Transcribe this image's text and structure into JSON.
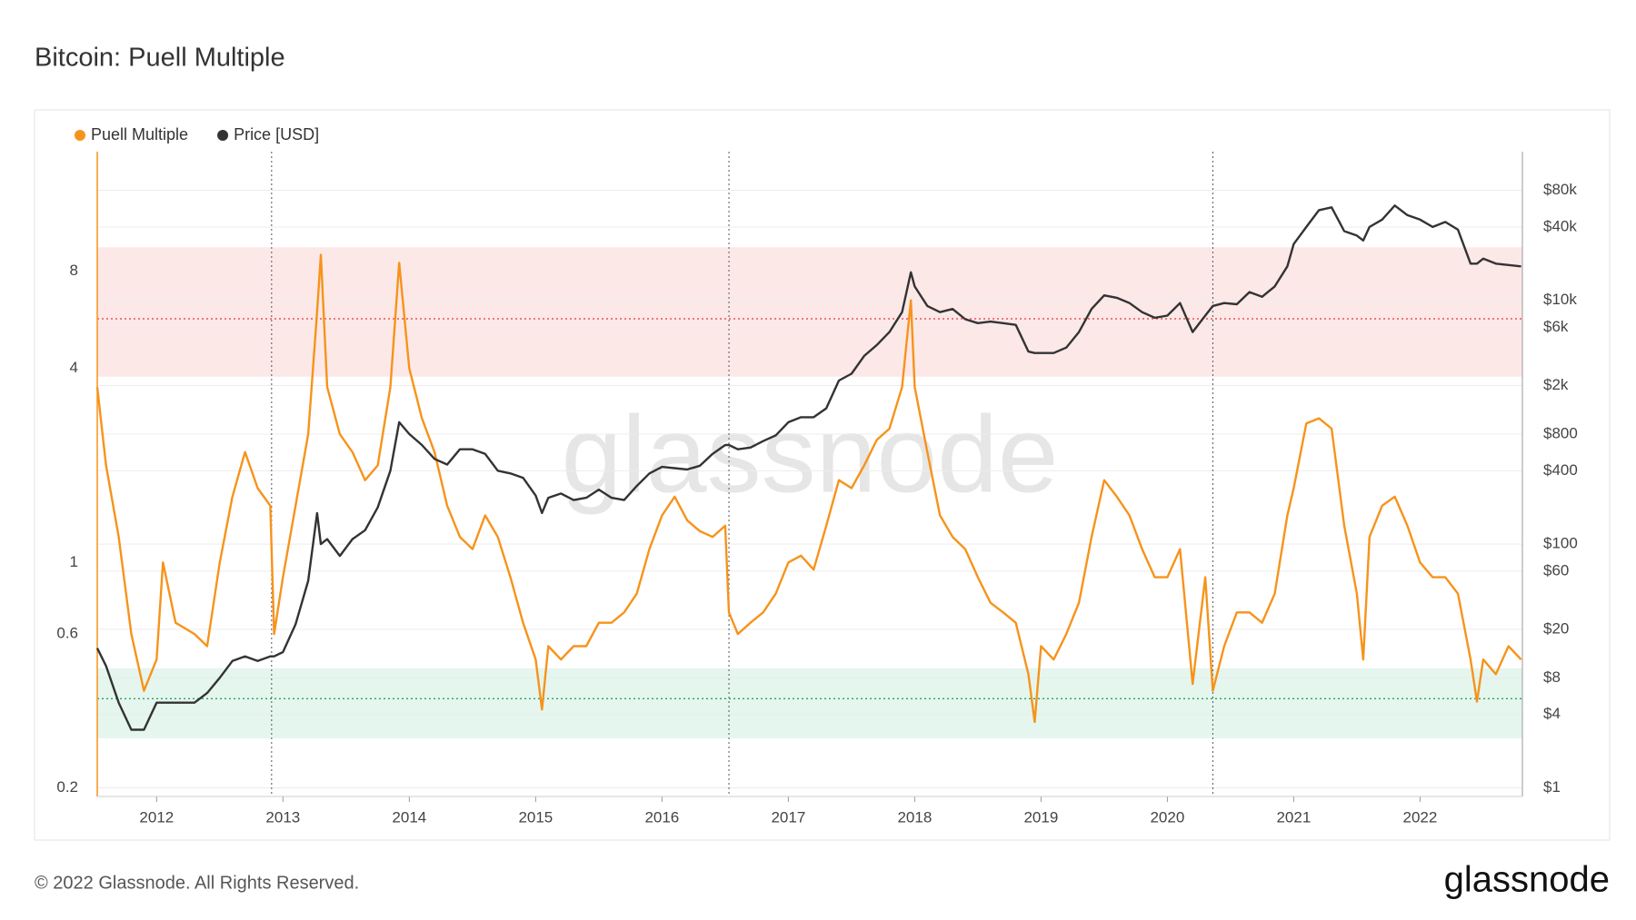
{
  "chart_data": {
    "type": "line",
    "title": "Bitcoin: Puell Multiple",
    "footer": "© 2022 Glassnode. All Rights Reserved.",
    "logo": "glassnode",
    "watermark": "glassnode",
    "log_y": true,
    "log_y2": true,
    "grid": true,
    "legend": "top-left",
    "xlim": [
      2011.53,
      2022.81
    ],
    "xticks": [
      2012,
      2013,
      2014,
      2015,
      2016,
      2017,
      2018,
      2019,
      2020,
      2021,
      2022
    ],
    "ylim": [
      0.188,
      18.8
    ],
    "yticks": [
      0.2,
      0.6,
      1,
      4,
      8
    ],
    "y2lim": [
      0.85,
      166000
    ],
    "y2ticks": [
      {
        "value": 1,
        "label": "$1"
      },
      {
        "value": 4,
        "label": "$4"
      },
      {
        "value": 8,
        "label": "$8"
      },
      {
        "value": 20,
        "label": "$20"
      },
      {
        "value": 60,
        "label": "$60"
      },
      {
        "value": 100,
        "label": "$100"
      },
      {
        "value": 400,
        "label": "$400"
      },
      {
        "value": 800,
        "label": "$800"
      },
      {
        "value": 2000,
        "label": "$2k"
      },
      {
        "value": 6000,
        "label": "$6k"
      },
      {
        "value": 10000,
        "label": "$10k"
      },
      {
        "value": 40000,
        "label": "$40k"
      },
      {
        "value": 80000,
        "label": "$80k"
      }
    ],
    "bands": [
      {
        "from": 3.77,
        "to": 9.5,
        "color": "#fde8e8"
      },
      {
        "from": 0.285,
        "to": 0.47,
        "color": "#e4f6ee"
      }
    ],
    "reference_lines": [
      {
        "value": 5.7,
        "color": "#e53935"
      },
      {
        "value": 0.378,
        "color": "#2e9e5e"
      }
    ],
    "halvings": [
      2012.91,
      2016.53,
      2020.36
    ],
    "x": [
      2011.53,
      2011.6,
      2011.7,
      2011.8,
      2011.9,
      2012.0,
      2012.05,
      2012.15,
      2012.3,
      2012.4,
      2012.5,
      2012.6,
      2012.7,
      2012.8,
      2012.9,
      2012.93,
      2013.0,
      2013.1,
      2013.2,
      2013.27,
      2013.3,
      2013.35,
      2013.45,
      2013.55,
      2013.65,
      2013.75,
      2013.85,
      2013.92,
      2014.0,
      2014.1,
      2014.2,
      2014.3,
      2014.4,
      2014.5,
      2014.6,
      2014.7,
      2014.8,
      2014.9,
      2015.0,
      2015.05,
      2015.1,
      2015.2,
      2015.3,
      2015.4,
      2015.5,
      2015.6,
      2015.7,
      2015.8,
      2015.9,
      2016.0,
      2016.1,
      2016.2,
      2016.3,
      2016.4,
      2016.5,
      2016.53,
      2016.6,
      2016.7,
      2016.8,
      2016.9,
      2017.0,
      2017.1,
      2017.2,
      2017.3,
      2017.4,
      2017.5,
      2017.6,
      2017.7,
      2017.8,
      2017.9,
      2017.97,
      2018.0,
      2018.1,
      2018.2,
      2018.3,
      2018.4,
      2018.5,
      2018.6,
      2018.7,
      2018.8,
      2018.9,
      2018.95,
      2019.0,
      2019.1,
      2019.2,
      2019.3,
      2019.4,
      2019.5,
      2019.6,
      2019.7,
      2019.8,
      2019.9,
      2020.0,
      2020.1,
      2020.2,
      2020.3,
      2020.36,
      2020.45,
      2020.55,
      2020.65,
      2020.75,
      2020.85,
      2020.95,
      2021.0,
      2021.1,
      2021.2,
      2021.3,
      2021.4,
      2021.5,
      2021.55,
      2021.6,
      2021.7,
      2021.8,
      2021.9,
      2022.0,
      2022.1,
      2022.2,
      2022.3,
      2022.4,
      2022.45,
      2022.5,
      2022.6,
      2022.7,
      2022.8
    ],
    "series": [
      {
        "name": "Puell Multiple",
        "color": "#f7931a",
        "axis": "y",
        "values": [
          3.5,
          2.0,
          1.2,
          0.6,
          0.4,
          0.5,
          1.0,
          0.65,
          0.6,
          0.55,
          1.0,
          1.6,
          2.2,
          1.7,
          1.5,
          0.6,
          0.9,
          1.5,
          2.5,
          6.0,
          9.0,
          3.5,
          2.5,
          2.2,
          1.8,
          2.0,
          3.5,
          8.5,
          4.0,
          2.8,
          2.2,
          1.5,
          1.2,
          1.1,
          1.4,
          1.2,
          0.9,
          0.65,
          0.5,
          0.35,
          0.55,
          0.5,
          0.55,
          0.55,
          0.65,
          0.65,
          0.7,
          0.8,
          1.1,
          1.4,
          1.6,
          1.35,
          1.25,
          1.2,
          1.3,
          0.7,
          0.6,
          0.65,
          0.7,
          0.8,
          1.0,
          1.05,
          0.95,
          1.3,
          1.8,
          1.7,
          2.0,
          2.4,
          2.6,
          3.5,
          6.5,
          3.5,
          2.2,
          1.4,
          1.2,
          1.1,
          0.9,
          0.75,
          0.7,
          0.65,
          0.45,
          0.32,
          0.55,
          0.5,
          0.6,
          0.75,
          1.2,
          1.8,
          1.6,
          1.4,
          1.1,
          0.9,
          0.9,
          1.1,
          0.42,
          0.9,
          0.4,
          0.55,
          0.7,
          0.7,
          0.65,
          0.8,
          1.4,
          1.7,
          2.7,
          2.8,
          2.6,
          1.3,
          0.8,
          0.5,
          1.2,
          1.5,
          1.6,
          1.3,
          1.0,
          0.9,
          0.9,
          0.8,
          0.5,
          0.37,
          0.5,
          0.45,
          0.55,
          0.5
        ]
      },
      {
        "name": "Price [USD]",
        "color": "#333333",
        "axis": "y2",
        "values": [
          14,
          10,
          5,
          3,
          3,
          5,
          5,
          5,
          5,
          6,
          8,
          11,
          12,
          11,
          12,
          12,
          13,
          22,
          50,
          180,
          100,
          110,
          80,
          110,
          130,
          200,
          400,
          1000,
          800,
          650,
          500,
          450,
          600,
          600,
          550,
          400,
          380,
          350,
          250,
          180,
          240,
          260,
          230,
          240,
          280,
          240,
          230,
          300,
          380,
          430,
          420,
          410,
          440,
          550,
          650,
          650,
          600,
          620,
          700,
          780,
          1000,
          1100,
          1100,
          1300,
          2200,
          2500,
          3500,
          4300,
          5500,
          8000,
          17000,
          13000,
          9000,
          8000,
          8500,
          7000,
          6500,
          6700,
          6500,
          6300,
          3800,
          3700,
          3700,
          3700,
          4100,
          5500,
          8500,
          11000,
          10500,
          9500,
          8000,
          7200,
          7500,
          9500,
          5500,
          7500,
          9000,
          9500,
          9300,
          11700,
          10700,
          13000,
          19000,
          29000,
          40000,
          55000,
          58000,
          37000,
          34000,
          31000,
          40000,
          46000,
          60000,
          50000,
          46000,
          40000,
          44000,
          38000,
          20000,
          20000,
          22000,
          20000,
          19500,
          19000
        ]
      }
    ]
  }
}
